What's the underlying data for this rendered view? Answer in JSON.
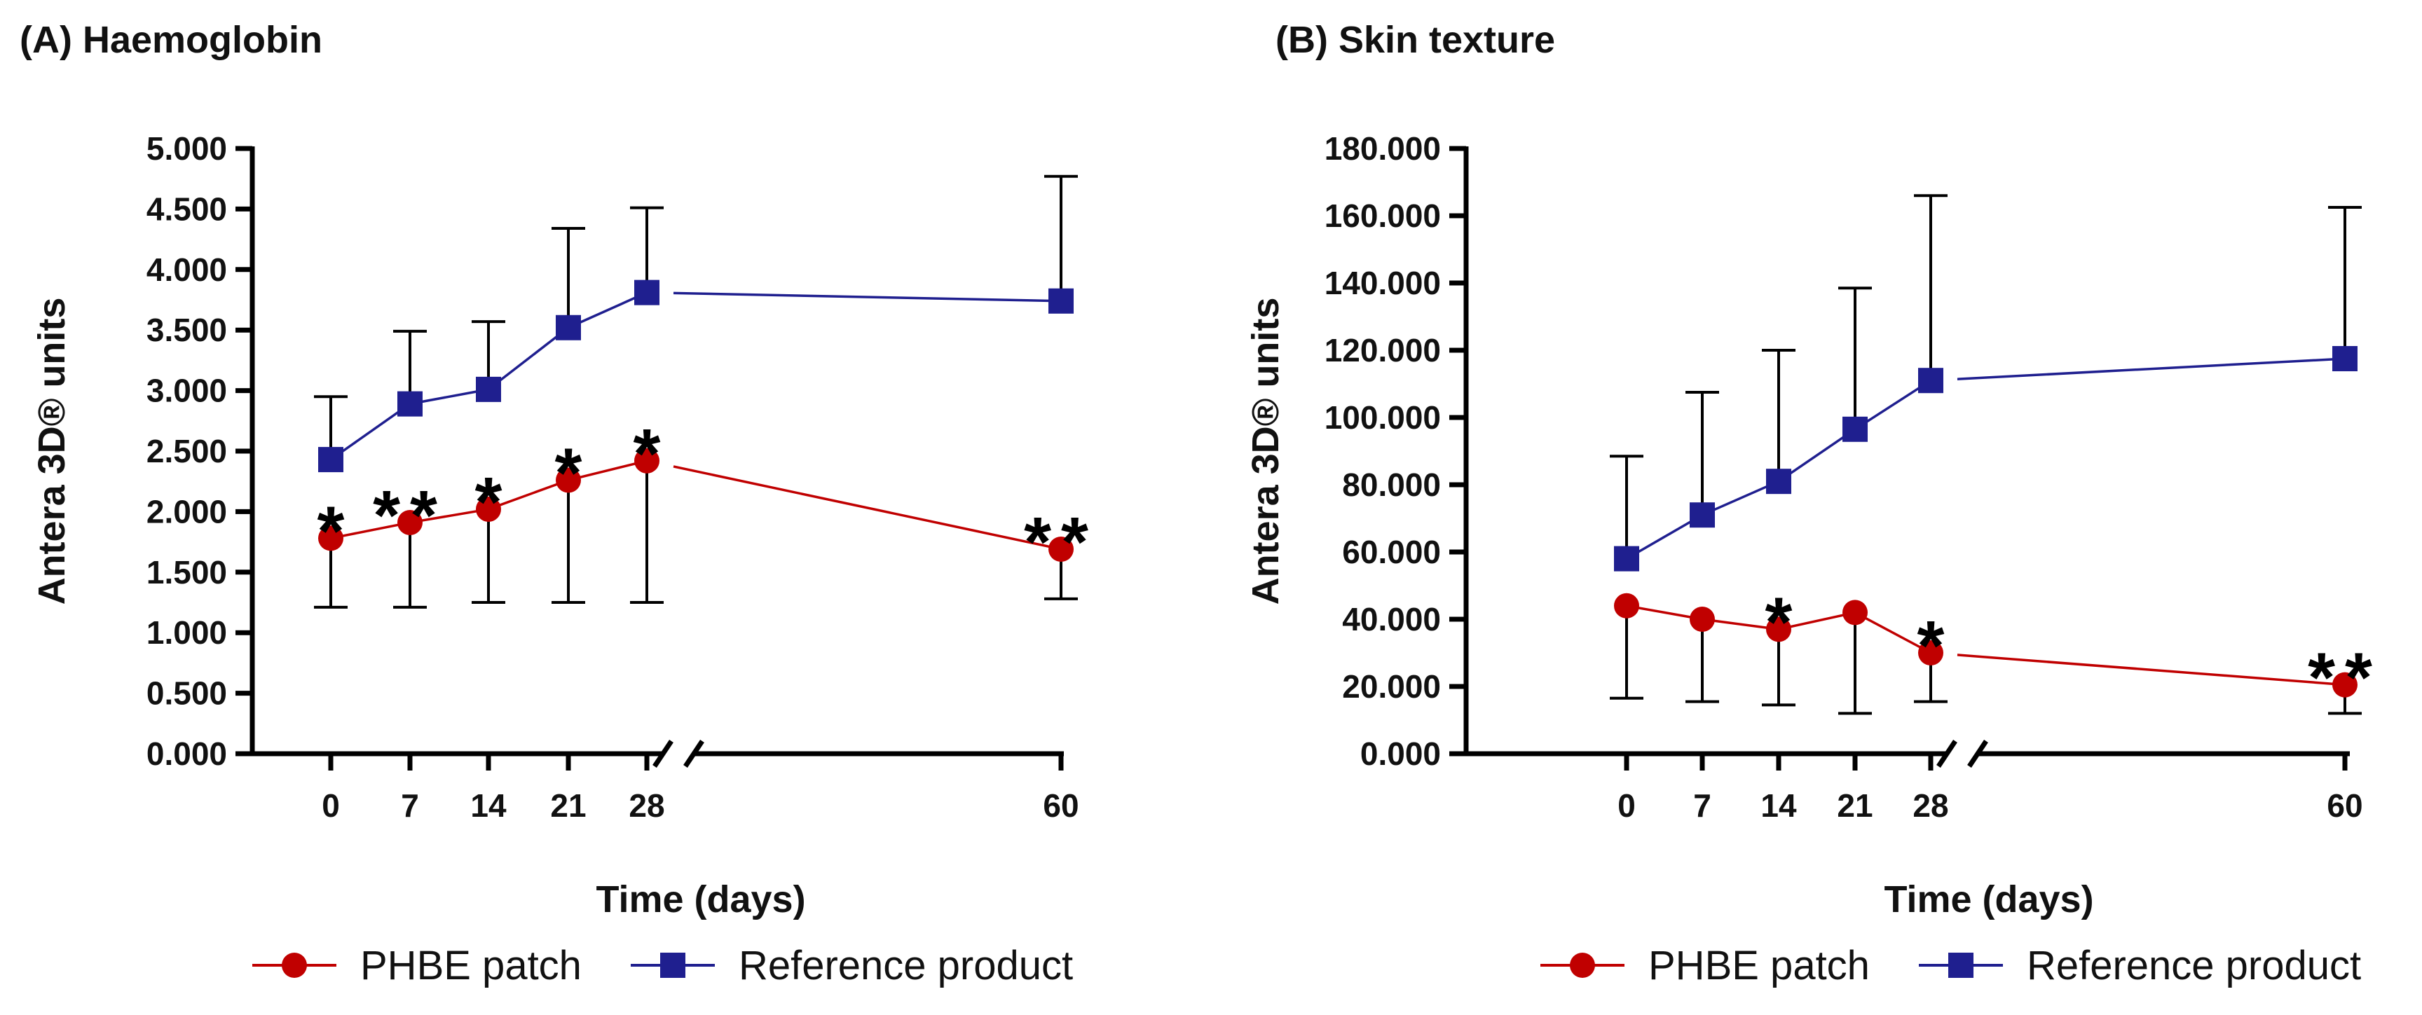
{
  "colors": {
    "phbe": "#C00000",
    "reference": "#1F1F8F",
    "errorbar": "#000000"
  },
  "chart_data": [
    {
      "type": "line",
      "panel_title": "(A) Haemoglobin",
      "xlabel": "Time (days)",
      "ylabel": "Antera 3D® units",
      "x": [
        0,
        7,
        14,
        21,
        28,
        60
      ],
      "x_tick_labels": [
        "0",
        "7",
        "14",
        "21",
        "28",
        "60"
      ],
      "axis_break_after": 28,
      "ylim": [
        0,
        5
      ],
      "y_ticks": [
        0,
        0.5,
        1,
        1.5,
        2,
        2.5,
        3,
        3.5,
        4,
        4.5,
        5
      ],
      "y_tick_labels": [
        "0.000",
        "0.500",
        "1.000",
        "1.500",
        "2.000",
        "2.500",
        "3.000",
        "3.500",
        "4.000",
        "4.500",
        "5.000"
      ],
      "series": [
        {
          "name": "PHBE patch",
          "values": [
            1.78,
            1.91,
            2.02,
            2.26,
            2.42,
            1.69
          ],
          "error_lower": [
            0.57,
            0.7,
            0.77,
            1.01,
            1.17,
            0.41
          ],
          "error_upper": [
            0,
            0,
            0,
            0,
            0,
            0
          ]
        },
        {
          "name": "Reference product",
          "values": [
            2.43,
            2.89,
            3.01,
            3.52,
            3.81,
            3.74
          ],
          "error_lower": [
            0,
            0,
            0,
            0,
            0,
            0
          ],
          "error_upper": [
            0.52,
            0.6,
            0.56,
            0.82,
            0.7,
            1.03
          ]
        }
      ],
      "significance": [
        {
          "x": 0,
          "label": "*"
        },
        {
          "x": 7,
          "label": "**"
        },
        {
          "x": 14,
          "label": "*"
        },
        {
          "x": 21,
          "label": "*"
        },
        {
          "x": 28,
          "label": "*"
        },
        {
          "x": 60,
          "label": "**"
        }
      ]
    },
    {
      "type": "line",
      "panel_title": "(B) Skin texture",
      "xlabel": "Time (days)",
      "ylabel": "Antera 3D® units",
      "x": [
        0,
        7,
        14,
        21,
        28,
        60
      ],
      "x_tick_labels": [
        "0",
        "7",
        "14",
        "21",
        "28",
        "60"
      ],
      "axis_break_after": 28,
      "ylim": [
        0,
        180
      ],
      "y_ticks": [
        0,
        20,
        40,
        60,
        80,
        100,
        120,
        140,
        160,
        180
      ],
      "y_tick_labels": [
        "0.000",
        "20.000",
        "40.000",
        "60.000",
        "80.000",
        "100.000",
        "120.000",
        "140.000",
        "160.000",
        "180.000"
      ],
      "series": [
        {
          "name": "PHBE patch",
          "values": [
            44,
            40,
            37,
            42,
            30,
            20.5
          ],
          "error_lower": [
            27.5,
            24.5,
            22.5,
            30,
            14.5,
            8.5
          ],
          "error_upper": [
            0,
            0,
            0,
            0,
            0,
            0
          ]
        },
        {
          "name": "Reference product",
          "values": [
            58,
            71,
            81,
            96.5,
            111,
            117.5
          ],
          "error_lower": [
            0,
            0,
            0,
            0,
            0,
            0
          ],
          "error_upper": [
            30.5,
            36.5,
            39,
            42,
            55,
            45
          ]
        }
      ],
      "significance": [
        {
          "x": 14,
          "label": "*"
        },
        {
          "x": 28,
          "label": "*"
        },
        {
          "x": 60,
          "label": "**"
        }
      ]
    }
  ]
}
